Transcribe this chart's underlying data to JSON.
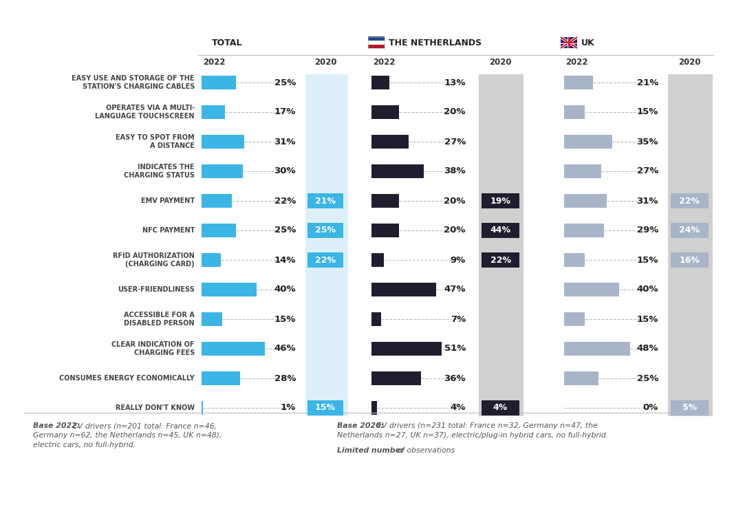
{
  "categories": [
    "EASY USE AND STORAGE OF THE\nSTATION'S CHARGING CABLES",
    "OPERATES VIA A MULTI-\nLANGUAGE TOUCHSCREEN",
    "EASY TO SPOT FROM\nA DISTANCE",
    "INDICATES THE\nCHARGING STATUS",
    "EMV PAYMENT",
    "NFC PAYMENT",
    "RFID AUTHORIZATION\n(CHARGING CARD)",
    "USER-FRIENDLINESS",
    "ACCESSIBLE FOR A\nDISABLED PERSON",
    "CLEAR INDICATION OF\nCHARGING FEES",
    "CONSUMES ENERGY ECONOMICALLY",
    "REALLY DON'T KNOW"
  ],
  "total_2022": [
    25,
    17,
    31,
    30,
    22,
    25,
    14,
    40,
    15,
    46,
    28,
    1
  ],
  "total_2020": [
    null,
    null,
    null,
    null,
    21,
    25,
    22,
    null,
    null,
    null,
    null,
    15
  ],
  "nl_2022": [
    13,
    20,
    27,
    38,
    20,
    20,
    9,
    47,
    7,
    51,
    36,
    4
  ],
  "nl_2020": [
    null,
    null,
    null,
    null,
    19,
    44,
    22,
    null,
    null,
    null,
    null,
    4
  ],
  "uk_2022": [
    21,
    15,
    35,
    27,
    31,
    29,
    15,
    40,
    15,
    48,
    25,
    0
  ],
  "uk_2020": [
    null,
    null,
    null,
    null,
    22,
    24,
    16,
    null,
    null,
    null,
    null,
    5
  ],
  "color_total_2022": "#3ab5e5",
  "color_nl_2022": "#1e1e2e",
  "color_uk_2022": "#a8b4c8",
  "color_total_2020_box": "#3ab5e5",
  "color_nl_2020_box": "#1e1e2e",
  "color_uk_2020_box": "#a8b4c8",
  "bg_total_2020": "#ddf0f9",
  "bg_nl_2020": "#d0d0d0",
  "bg_uk_2020": "#d0d0d0",
  "label_color": "#444444",
  "pct_color": "#222222",
  "year_color": "#333333",
  "header_color": "#222222",
  "note_color": "#555555",
  "line_color": "#bbbbbb",
  "fig_width": 10.67,
  "fig_height": 7.4,
  "dpi": 100
}
